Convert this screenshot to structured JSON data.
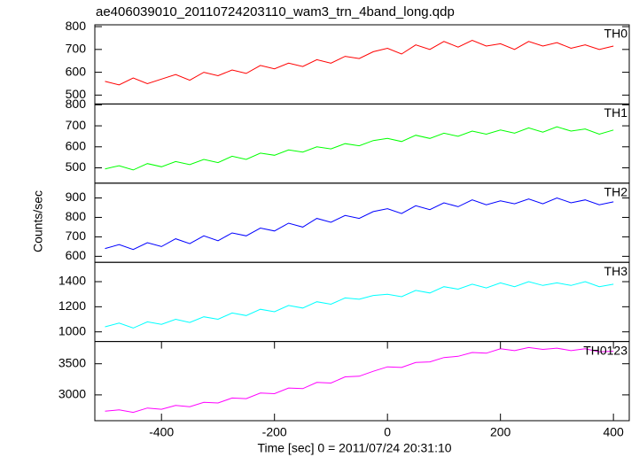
{
  "title": "ae406039010_20110724203110_wam3_trn_4band_long.qdp",
  "y_label": "Counts/sec",
  "x_label": "Time [sec] 0 = 2011/07/24 20:31:10",
  "chart_data": [
    {
      "type": "line",
      "xlim": [
        -518,
        428
      ],
      "ylim": [
        461,
        808
      ],
      "yticks": [
        500,
        600,
        700,
        800
      ],
      "x": [
        -500,
        -475,
        -450,
        -425,
        -400,
        -375,
        -350,
        -325,
        -300,
        -275,
        -250,
        -225,
        -200,
        -175,
        -150,
        -125,
        -100,
        -75,
        -50,
        -25,
        0,
        25,
        50,
        75,
        100,
        125,
        150,
        175,
        200,
        225,
        250,
        275,
        300,
        325,
        350,
        375,
        400
      ],
      "series": [
        {
          "name": "TH0",
          "color": "#ff0000",
          "values": [
            560,
            545,
            575,
            550,
            570,
            590,
            565,
            600,
            585,
            610,
            595,
            630,
            615,
            640,
            625,
            655,
            640,
            670,
            660,
            690,
            705,
            680,
            720,
            700,
            735,
            710,
            740,
            715,
            725,
            700,
            735,
            715,
            730,
            705,
            720,
            700,
            715
          ]
        }
      ]
    },
    {
      "type": "line",
      "xlim": [
        -518,
        428
      ],
      "ylim": [
        427,
        804
      ],
      "yticks": [
        500,
        600,
        700,
        800
      ],
      "x": [
        -500,
        -475,
        -450,
        -425,
        -400,
        -375,
        -350,
        -325,
        -300,
        -275,
        -250,
        -225,
        -200,
        -175,
        -150,
        -125,
        -100,
        -75,
        -50,
        -25,
        0,
        25,
        50,
        75,
        100,
        125,
        150,
        175,
        200,
        225,
        250,
        275,
        300,
        325,
        350,
        375,
        400
      ],
      "series": [
        {
          "name": "TH1",
          "color": "#00ff00",
          "values": [
            495,
            510,
            490,
            520,
            505,
            530,
            515,
            540,
            525,
            555,
            540,
            570,
            560,
            585,
            575,
            600,
            590,
            615,
            605,
            630,
            640,
            625,
            655,
            640,
            665,
            650,
            675,
            660,
            680,
            665,
            690,
            670,
            695,
            675,
            685,
            660,
            680
          ]
        }
      ]
    },
    {
      "type": "line",
      "xlim": [
        -518,
        428
      ],
      "ylim": [
        569,
        976
      ],
      "yticks": [
        600,
        700,
        800,
        900
      ],
      "x": [
        -500,
        -475,
        -450,
        -425,
        -400,
        -375,
        -350,
        -325,
        -300,
        -275,
        -250,
        -225,
        -200,
        -175,
        -150,
        -125,
        -100,
        -75,
        -50,
        -25,
        0,
        25,
        50,
        75,
        100,
        125,
        150,
        175,
        200,
        225,
        250,
        275,
        300,
        325,
        350,
        375,
        400
      ],
      "series": [
        {
          "name": "TH2",
          "color": "#0000ff",
          "values": [
            640,
            660,
            635,
            670,
            650,
            690,
            665,
            705,
            680,
            720,
            705,
            745,
            730,
            770,
            750,
            795,
            775,
            810,
            795,
            830,
            845,
            820,
            860,
            840,
            875,
            855,
            890,
            865,
            885,
            870,
            895,
            870,
            900,
            875,
            890,
            865,
            880
          ]
        }
      ]
    },
    {
      "type": "line",
      "xlim": [
        -518,
        428
      ],
      "ylim": [
        923,
        1554
      ],
      "yticks": [
        1000,
        1200,
        1400
      ],
      "x": [
        -500,
        -475,
        -450,
        -425,
        -400,
        -375,
        -350,
        -325,
        -300,
        -275,
        -250,
        -225,
        -200,
        -175,
        -150,
        -125,
        -100,
        -75,
        -50,
        -25,
        0,
        25,
        50,
        75,
        100,
        125,
        150,
        175,
        200,
        225,
        250,
        275,
        300,
        325,
        350,
        375,
        400
      ],
      "series": [
        {
          "name": "TH3",
          "color": "#00ffff",
          "values": [
            1040,
            1070,
            1030,
            1080,
            1060,
            1100,
            1075,
            1120,
            1100,
            1150,
            1130,
            1180,
            1160,
            1210,
            1190,
            1240,
            1220,
            1270,
            1260,
            1290,
            1300,
            1280,
            1330,
            1310,
            1360,
            1340,
            1380,
            1350,
            1390,
            1360,
            1400,
            1370,
            1390,
            1370,
            1400,
            1360,
            1380
          ]
        }
      ]
    },
    {
      "type": "line",
      "xlim": [
        -518,
        428
      ],
      "ylim": [
        2586,
        3857
      ],
      "yticks": [
        3000,
        3500
      ],
      "xticks": [
        -400,
        -200,
        0,
        200,
        400
      ],
      "x": [
        -500,
        -475,
        -450,
        -425,
        -400,
        -375,
        -350,
        -325,
        -300,
        -275,
        -250,
        -225,
        -200,
        -175,
        -150,
        -125,
        -100,
        -75,
        -50,
        -25,
        0,
        25,
        50,
        75,
        100,
        125,
        150,
        175,
        200,
        225,
        250,
        275,
        300,
        325,
        350,
        375,
        400
      ],
      "series": [
        {
          "name": "TH0123",
          "color": "#ff00ff",
          "values": [
            2740,
            2760,
            2720,
            2790,
            2770,
            2830,
            2810,
            2880,
            2870,
            2950,
            2940,
            3030,
            3020,
            3110,
            3100,
            3200,
            3190,
            3290,
            3300,
            3380,
            3450,
            3440,
            3520,
            3530,
            3600,
            3620,
            3680,
            3670,
            3740,
            3710,
            3760,
            3730,
            3750,
            3710,
            3740,
            3690,
            3700
          ]
        }
      ]
    }
  ]
}
